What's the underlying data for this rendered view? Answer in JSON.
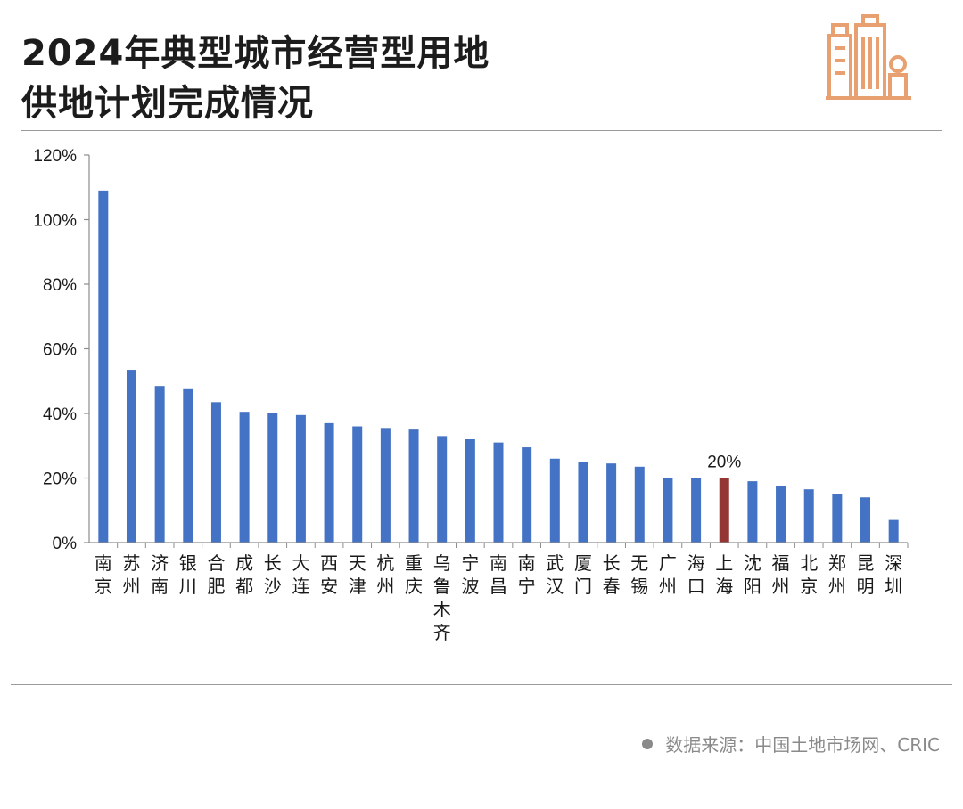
{
  "header": {
    "title_line1": "2024年典型城市经营型用地",
    "title_line2": "供地计划完成情况"
  },
  "logo": {
    "icon": "city-buildings-icon",
    "color": "#e8a070"
  },
  "colors": {
    "bar": "#4472c4",
    "highlight": "#943634",
    "axis": "#8c8c8c",
    "text": "#1a1a1a"
  },
  "chart_data": {
    "type": "bar",
    "categories": [
      "南京",
      "苏州",
      "济南",
      "银川",
      "合肥",
      "成都",
      "长沙",
      "大连",
      "西安",
      "天津",
      "杭州",
      "重庆",
      "乌鲁木齐",
      "宁波",
      "南昌",
      "南宁",
      "武汉",
      "厦门",
      "长春",
      "无锡",
      "广州",
      "海口",
      "上海",
      "沈阳",
      "福州",
      "北京",
      "郑州",
      "昆明",
      "深圳"
    ],
    "values": [
      109,
      53.5,
      48.5,
      47.5,
      43.5,
      40.5,
      40,
      39.5,
      37,
      36,
      35.5,
      35,
      33,
      32,
      31,
      29.5,
      26,
      25,
      24.5,
      23.5,
      20,
      20,
      20,
      19,
      17.5,
      16.5,
      15,
      14,
      7
    ],
    "highlight_index": 22,
    "data_labels": [
      {
        "index": 22,
        "text": "20%"
      }
    ],
    "ylim": [
      0,
      120
    ],
    "y_ticks": [
      "0%",
      "20%",
      "40%",
      "60%",
      "80%",
      "100%",
      "120%"
    ],
    "y_tick_values": [
      0,
      20,
      40,
      60,
      80,
      100,
      120
    ],
    "legend": "none",
    "grid": false
  },
  "footer": {
    "source_icon": "dot-icon",
    "source_text": "数据来源：中国土地市场网、CRIC"
  }
}
